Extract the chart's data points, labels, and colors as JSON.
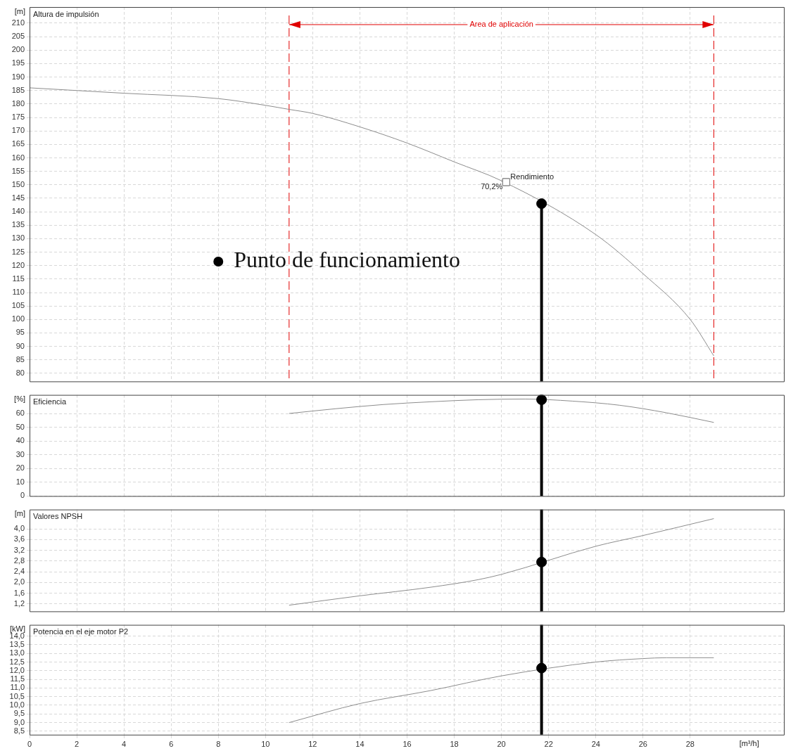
{
  "chart_data": [
    {
      "type": "line",
      "title": "Altura de impulsión",
      "ylabel": "[m]",
      "xlim": [
        0,
        32
      ],
      "xticks": [
        0,
        2,
        4,
        6,
        8,
        10,
        12,
        14,
        16,
        18,
        20,
        22,
        24,
        26,
        28
      ],
      "ylim": [
        77,
        216
      ],
      "yticks": [
        80,
        85,
        90,
        95,
        100,
        105,
        110,
        115,
        120,
        125,
        130,
        135,
        140,
        145,
        150,
        155,
        160,
        165,
        170,
        175,
        180,
        185,
        190,
        195,
        200,
        205,
        210
      ],
      "tick_labels": "y",
      "grid": true,
      "legend": "left",
      "series": [
        {
          "color": "#8c8c8c",
          "marker": "none",
          "x": [
            0,
            4,
            8,
            10,
            11,
            12,
            14,
            16,
            18,
            20,
            24,
            26,
            28,
            29
          ],
          "values": [
            186,
            184,
            182,
            179.5,
            178,
            176.5,
            171.5,
            165.5,
            158.5,
            151.5,
            131.5,
            117,
            100,
            86.5
          ]
        },
        {
          "type": "lollipop",
          "marker": "circle",
          "name": "Punto de funcionamiento",
          "color": "#000000",
          "x": [
            21.7
          ],
          "values": [
            143
          ]
        }
      ],
      "ref_lines": [
        {
          "axis": "x",
          "value": 11,
          "color": "#e00000",
          "line_style": "dashed"
        },
        {
          "axis": "x",
          "value": 29,
          "color": "#e00000",
          "line_style": "dashed"
        }
      ],
      "annotations": [
        "Area de aplicación",
        {
          "text": "Rendimiento",
          "x": 20.2,
          "y": 151
        },
        {
          "text": "70,2%",
          "x": 20.2,
          "y": 151
        }
      ]
    },
    {
      "type": "line",
      "title": "Eficiencia",
      "ylabel": "[%]",
      "xlim": [
        0,
        32
      ],
      "xticks": [
        0,
        2,
        4,
        6,
        8,
        10,
        12,
        14,
        16,
        18,
        20,
        22,
        24,
        26,
        28
      ],
      "ylim": [
        0,
        73.5
      ],
      "yticks": [
        0,
        10,
        20,
        30,
        40,
        50,
        60
      ],
      "tick_labels": "y",
      "grid": true,
      "series": [
        {
          "color": "#8c8c8c",
          "marker": "none",
          "x": [
            11,
            13,
            15,
            17,
            19,
            21,
            23,
            25,
            27,
            29
          ],
          "values": [
            60,
            63.5,
            66.5,
            68.5,
            70,
            70.5,
            69,
            66,
            60.5,
            53.5
          ]
        },
        {
          "type": "scatter",
          "marker": "circle",
          "color": "#000000",
          "x": [
            21.7
          ],
          "values": [
            70
          ]
        }
      ],
      "ref_lines": [
        {
          "axis": "x",
          "value": 21.7,
          "color": "#000000"
        }
      ]
    },
    {
      "type": "line",
      "title": "Valores NPSH",
      "ylabel": "[m]",
      "xlim": [
        0,
        32
      ],
      "xticks": [
        0,
        2,
        4,
        6,
        8,
        10,
        12,
        14,
        16,
        18,
        20,
        22,
        24,
        26,
        28
      ],
      "ylim": [
        0.92,
        4.72
      ],
      "yticks": [
        {
          "value": 1.2,
          "label": "1,2"
        },
        {
          "value": 1.6,
          "label": "1,6"
        },
        {
          "value": 2.0,
          "label": "2,0"
        },
        {
          "value": 2.4,
          "label": "2,4"
        },
        {
          "value": 2.8,
          "label": "2,8"
        },
        {
          "value": 3.2,
          "label": "3,2"
        },
        {
          "value": 3.6,
          "label": "3,6"
        },
        {
          "value": 4.0,
          "label": "4,0"
        }
      ],
      "tick_labels": "y",
      "grid": true,
      "series": [
        {
          "color": "#8c8c8c",
          "marker": "none",
          "x": [
            11,
            14,
            17,
            19,
            20,
            24,
            26,
            29
          ],
          "values": [
            1.15,
            1.5,
            1.82,
            2.1,
            2.3,
            3.35,
            3.75,
            4.38
          ]
        },
        {
          "type": "scatter",
          "marker": "circle",
          "color": "#000000",
          "x": [
            21.7
          ],
          "values": [
            2.76
          ]
        }
      ],
      "ref_lines": [
        {
          "axis": "x",
          "value": 21.7,
          "color": "#000000"
        }
      ]
    },
    {
      "type": "line",
      "title": "Potencia en el eje motor P2",
      "ylabel": "[kW]",
      "xlabel": "[m³/h]",
      "xlim": [
        0,
        32
      ],
      "xticks": [
        0,
        2,
        4,
        6,
        8,
        10,
        12,
        14,
        16,
        18,
        20,
        22,
        24,
        26,
        28
      ],
      "ylim": [
        8.3,
        14.65
      ],
      "yticks": [
        {
          "value": 8.5,
          "label": "8,5"
        },
        {
          "value": 9.0,
          "label": "9,0"
        },
        {
          "value": 9.5,
          "label": "9,5"
        },
        {
          "value": 10.0,
          "label": "10,0"
        },
        {
          "value": 10.5,
          "label": "10,5"
        },
        {
          "value": 11.0,
          "label": "11,0"
        },
        {
          "value": 11.5,
          "label": "11,5"
        },
        {
          "value": 12.0,
          "label": "12,0"
        },
        {
          "value": 12.5,
          "label": "12,5"
        },
        {
          "value": 13.0,
          "label": "13,0"
        },
        {
          "value": 13.5,
          "label": "13,5"
        },
        {
          "value": 14.0,
          "label": "14,0"
        }
      ],
      "grid": true,
      "series": [
        {
          "color": "#8c8c8c",
          "marker": "none",
          "x": [
            11,
            14,
            17,
            20,
            24,
            26,
            27,
            29
          ],
          "values": [
            9.0,
            10.1,
            10.85,
            11.7,
            12.5,
            12.7,
            12.75,
            12.75
          ]
        },
        {
          "type": "scatter",
          "marker": "circle",
          "color": "#000000",
          "x": [
            21.7
          ],
          "values": [
            12.15
          ]
        }
      ],
      "ref_lines": [
        {
          "axis": "x",
          "value": 21.7,
          "color": "#000000"
        }
      ]
    }
  ]
}
